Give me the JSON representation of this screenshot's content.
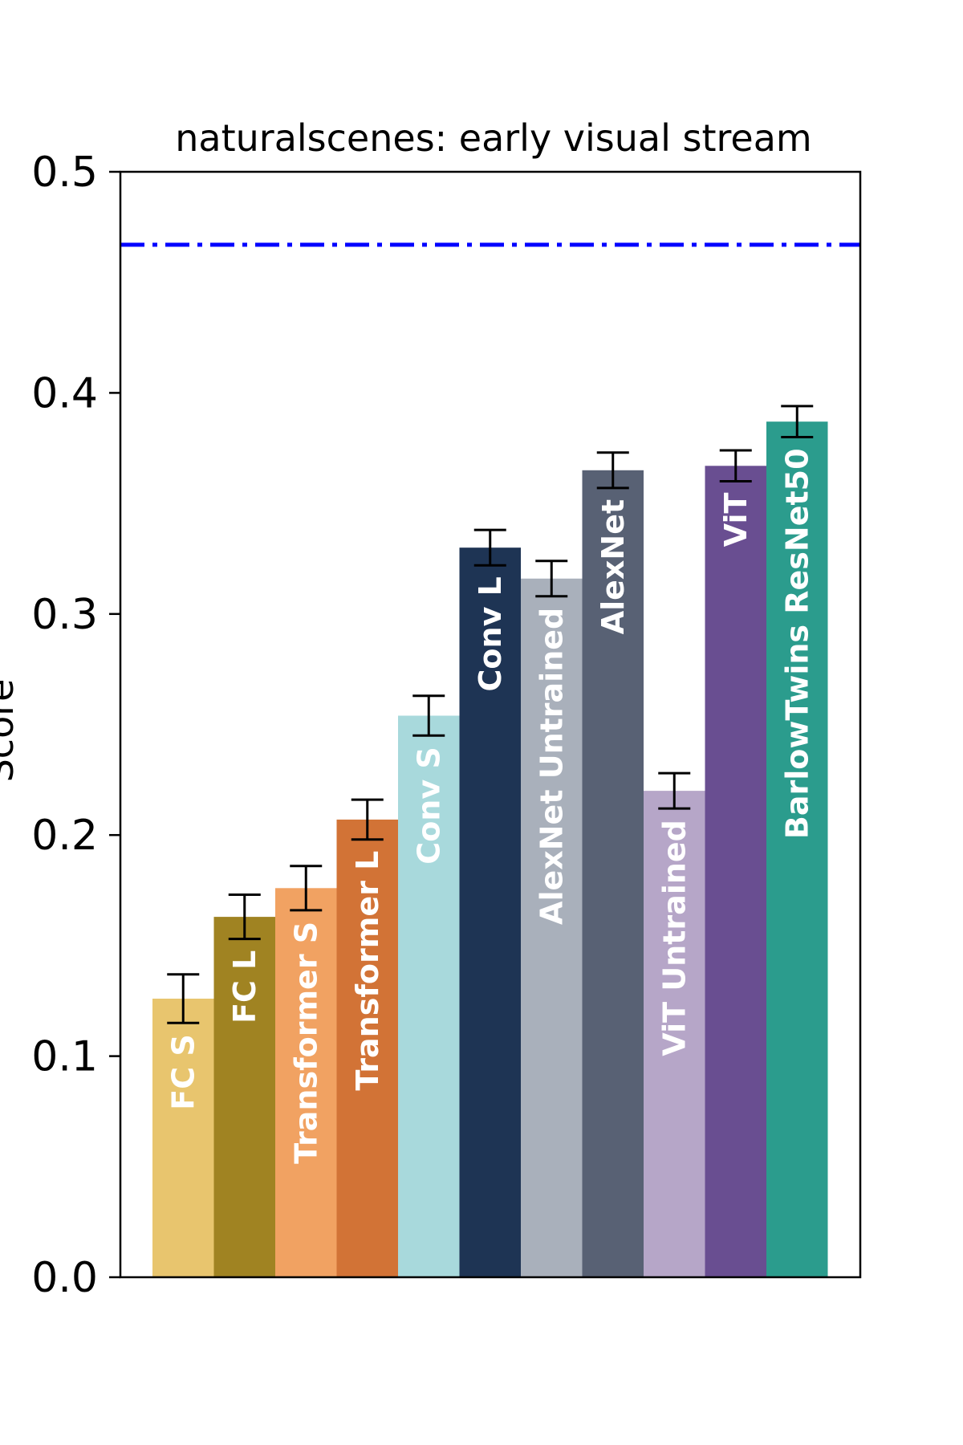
{
  "chart_data": {
    "type": "bar",
    "title": "naturalscenes: early visual stream",
    "ylabel": "Score",
    "ylim": [
      0,
      0.5
    ],
    "yticks": [
      "0.0",
      "0.1",
      "0.2",
      "0.3",
      "0.4",
      "0.5"
    ],
    "grid": false,
    "reference_line": {
      "value": 0.467,
      "style": "dash-dot",
      "color": "#0000ff"
    },
    "categories": [
      "FC S",
      "FC L",
      "Transformer S",
      "Transformer L",
      "Conv S",
      "Conv L",
      "AlexNet Untrained",
      "AlexNet",
      "ViT Untrained",
      "ViT",
      "BarlowTwins ResNet50"
    ],
    "values": [
      0.126,
      0.163,
      0.176,
      0.207,
      0.254,
      0.33,
      0.316,
      0.365,
      0.22,
      0.367,
      0.387
    ],
    "errors": [
      0.011,
      0.01,
      0.01,
      0.009,
      0.009,
      0.008,
      0.008,
      0.008,
      0.008,
      0.007,
      0.007
    ],
    "colors": [
      "#e8c56e",
      "#a08322",
      "#f1a262",
      "#d27336",
      "#a8d9dc",
      "#1e3454",
      "#a9b0bb",
      "#586174",
      "#b6a6c8",
      "#694e91",
      "#2b9c8d"
    ],
    "label_colors": [
      "#ffffff",
      "#ffffff",
      "#ffffff",
      "#ffffff",
      "#ffffff",
      "#ffffff",
      "#ffffff",
      "#ffffff",
      "#ffffff",
      "#ffffff",
      "#ffffff"
    ]
  }
}
